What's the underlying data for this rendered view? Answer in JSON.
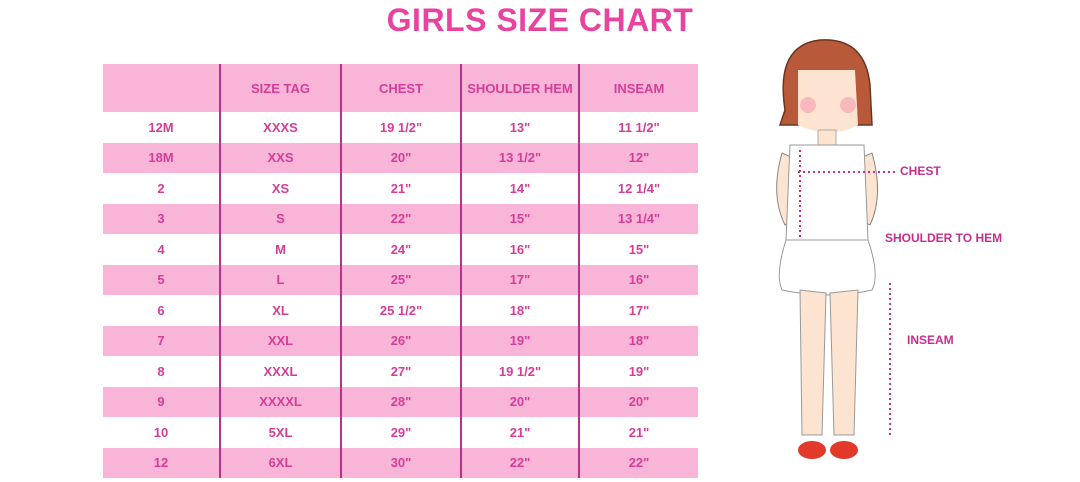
{
  "title": "GIRLS SIZE CHART",
  "table": {
    "headers": [
      "",
      "SIZE TAG",
      "CHEST",
      "SHOULDER HEM",
      "INSEAM"
    ],
    "rows": [
      [
        "12M",
        "XXXS",
        "19 1/2\"",
        "13\"",
        "11 1/2\""
      ],
      [
        "18M",
        "XXS",
        "20\"",
        "13 1/2\"",
        "12\""
      ],
      [
        "2",
        "XS",
        "21\"",
        "14\"",
        "12 1/4\""
      ],
      [
        "3",
        "S",
        "22\"",
        "15\"",
        "13 1/4\""
      ],
      [
        "4",
        "M",
        "24\"",
        "16\"",
        "15\""
      ],
      [
        "5",
        "L",
        "25\"",
        "17\"",
        "16\""
      ],
      [
        "6",
        "XL",
        "25 1/2\"",
        "18\"",
        "17\""
      ],
      [
        "7",
        "XXL",
        "26\"",
        "19\"",
        "18\""
      ],
      [
        "8",
        "XXXL",
        "27\"",
        "19 1/2\"",
        "19\""
      ],
      [
        "9",
        "XXXXL",
        "28\"",
        "20\"",
        "20\""
      ],
      [
        "10",
        "5XL",
        "29\"",
        "21\"",
        "21\""
      ],
      [
        "12",
        "6XL",
        "30\"",
        "22\"",
        "22\""
      ]
    ]
  },
  "diagram": {
    "labels": {
      "chest": "CHEST",
      "shoulder_to_hem": "SHOULDER TO HEM",
      "inseam": "INSEAM"
    }
  },
  "colors": {
    "title": "#e8439f",
    "text": "#d63d97",
    "band": "#f9b5d8",
    "divider": "#b7338a"
  }
}
